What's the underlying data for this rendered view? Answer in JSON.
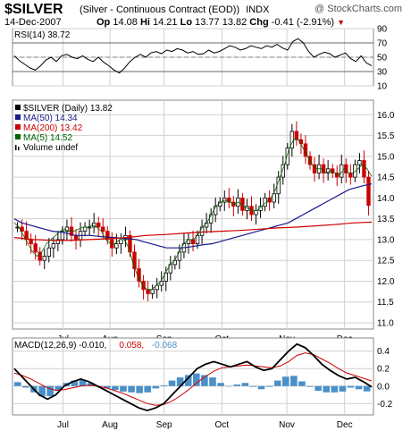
{
  "header": {
    "symbol": "$SILVER",
    "description": "(Silver - Continuous Contract (EOD))",
    "exchange": "INDX",
    "watermark": "@ StockCharts.com",
    "date": "14-Dec-2007",
    "open_label": "Op",
    "open": "14.08",
    "high_label": "Hi",
    "high": "14.21",
    "low_label": "Lo",
    "low": "13.77",
    "close": "13.82",
    "change_label": "Chg",
    "change": "-0.41 (-2.91%)",
    "arrow": "▼"
  },
  "colors": {
    "price_up": "#000000",
    "price_down": "#cc0000",
    "ma50": "#1a1a8c",
    "ma200": "#cc0000",
    "ma5": "#006600",
    "rsi_fill": "#339933",
    "macd_hist": "#4a90c8",
    "macd_line": "#000000",
    "signal_line": "#cc0000",
    "grid": "#d0d0d0"
  },
  "chart_data": [
    {
      "type": "line",
      "panel": "rsi",
      "legend": "RSI(14) 38.72",
      "y_ticks": [
        "90",
        "70",
        "50",
        "30",
        "10"
      ],
      "ylim": [
        10,
        90
      ],
      "reference_lines": [
        70,
        30
      ],
      "values": [
        52,
        45,
        40,
        35,
        32,
        38,
        46,
        50,
        44,
        52,
        54,
        50,
        48,
        52,
        47,
        44,
        50,
        43,
        38,
        32,
        28,
        35,
        44,
        50,
        54,
        50,
        56,
        58,
        55,
        60,
        58,
        62,
        60,
        56,
        58,
        54,
        55,
        60,
        56,
        58,
        62,
        66,
        64,
        60,
        62,
        66,
        64,
        62,
        66,
        64,
        68,
        63,
        60,
        72,
        76,
        70,
        58,
        50,
        54,
        57,
        55,
        50,
        53,
        56,
        48,
        44,
        52,
        42,
        38
      ]
    },
    {
      "type": "candlestick",
      "panel": "price",
      "legend": [
        {
          "text": "$SILVER (Daily) 13.82",
          "color": "#000000"
        },
        {
          "text": "MA(50) 14.34",
          "color": "#1a1a8c"
        },
        {
          "text": "MA(200) 13.42",
          "color": "#cc0000"
        },
        {
          "text": "MA(5) 14.52",
          "color": "#006600"
        },
        {
          "text": "Volume undef",
          "color": "#000000"
        }
      ],
      "x_labels": [
        "Jul",
        "Aug",
        "Sep",
        "Oct",
        "Nov",
        "Dec"
      ],
      "y_ticks": [
        "16.0",
        "15.5",
        "15.0",
        "14.5",
        "14.0",
        "13.5",
        "13.0",
        "12.5",
        "12.0",
        "11.5",
        "11.0"
      ],
      "ylim": [
        10.85,
        16.35
      ],
      "close": [
        13.3,
        13.2,
        13.0,
        12.9,
        12.7,
        12.5,
        12.6,
        12.8,
        12.9,
        13.0,
        13.2,
        13.3,
        13.1,
        13.0,
        13.2,
        13.3,
        13.3,
        13.4,
        13.3,
        13.2,
        13.0,
        12.8,
        12.9,
        13.0,
        13.1,
        12.7,
        12.3,
        12.0,
        11.8,
        11.7,
        11.8,
        11.9,
        12.0,
        12.2,
        12.4,
        12.5,
        12.7,
        12.9,
        13.0,
        12.9,
        13.1,
        13.3,
        13.4,
        13.6,
        13.8,
        13.9,
        14.0,
        13.9,
        13.8,
        14.0,
        13.7,
        13.8,
        13.6,
        13.7,
        13.8,
        14.0,
        13.9,
        14.1,
        14.5,
        14.8,
        15.2,
        15.6,
        15.4,
        15.3,
        15.0,
        14.8,
        14.6,
        14.8,
        14.6,
        14.7,
        14.6,
        14.5,
        14.8,
        14.6,
        14.5,
        14.8,
        14.9,
        14.5,
        13.82
      ],
      "series": [
        {
          "name": "MA(50)",
          "values": [
            13.5,
            13.4,
            13.35,
            13.3,
            13.25,
            13.2,
            13.18,
            13.15,
            13.1,
            13.1,
            13.1,
            13.08,
            13.06,
            13.05,
            13.04,
            13.02,
            13.0,
            12.95,
            12.9,
            12.85,
            12.8,
            12.8,
            12.8,
            12.82,
            12.85,
            12.88,
            12.9,
            12.95,
            13.0,
            13.05,
            13.1,
            13.15,
            13.2,
            13.25,
            13.3,
            13.35,
            13.4,
            13.5,
            13.6,
            13.7,
            13.8,
            13.9,
            14.0,
            14.1,
            14.2,
            14.25,
            14.3,
            14.34
          ]
        },
        {
          "name": "MA(200)",
          "values": [
            13.05,
            13.0,
            12.98,
            12.98,
            13.0,
            13.02,
            13.05,
            13.1,
            13.12,
            13.15,
            13.18,
            13.2,
            13.22,
            13.25,
            13.28,
            13.3,
            13.33,
            13.36,
            13.4,
            13.42
          ]
        },
        {
          "name": "MA(5)",
          "values": [
            13.4,
            13.3,
            13.1,
            12.9,
            12.7,
            12.6,
            12.7,
            12.9,
            13.0,
            13.1,
            13.2,
            13.25,
            13.2,
            13.2,
            13.25,
            13.3,
            13.3,
            13.35,
            13.3,
            13.2,
            13.0,
            12.9,
            12.9,
            13.0,
            13.0,
            12.8,
            12.4,
            12.1,
            11.9,
            11.8,
            11.8,
            11.9,
            12.0,
            12.2,
            12.4,
            12.5,
            12.7,
            12.9,
            13.0,
            13.0,
            13.1,
            13.3,
            13.4,
            13.6,
            13.8,
            13.9,
            13.95,
            13.9,
            13.85,
            13.9,
            13.8,
            13.75,
            13.7,
            13.7,
            13.8,
            13.9,
            14.0,
            14.2,
            14.5,
            14.8,
            15.2,
            15.4,
            15.4,
            15.2,
            15.0,
            14.8,
            14.7,
            14.7,
            14.6,
            14.65,
            14.6,
            14.55,
            14.7,
            14.6,
            14.6,
            14.7,
            14.8,
            14.7,
            14.52
          ]
        }
      ]
    },
    {
      "type": "line",
      "panel": "macd",
      "legend": [
        {
          "text": "MACD(12,26,9) -0.010,",
          "color": "#000000"
        },
        {
          "text": "0.058,",
          "color": "#cc0000"
        },
        {
          "text": "-0.068",
          "color": "#4a90c8"
        }
      ],
      "x_labels": [
        "Jul",
        "Aug",
        "Sep",
        "Oct",
        "Nov",
        "Dec"
      ],
      "y_ticks": [
        "0.4",
        "0.2",
        "0.0",
        "-0.2"
      ],
      "ylim": [
        -0.33,
        0.55
      ],
      "series": [
        {
          "name": "MACD",
          "values": [
            0.2,
            0.1,
            0.0,
            -0.1,
            -0.15,
            -0.1,
            0.0,
            0.05,
            0.08,
            0.05,
            0.0,
            -0.05,
            -0.1,
            -0.15,
            -0.2,
            -0.25,
            -0.28,
            -0.25,
            -0.2,
            -0.1,
            0.0,
            0.1,
            0.2,
            0.25,
            0.28,
            0.25,
            0.22,
            0.25,
            0.28,
            0.22,
            0.18,
            0.2,
            0.3,
            0.4,
            0.48,
            0.44,
            0.35,
            0.25,
            0.18,
            0.12,
            0.08,
            0.1,
            0.05,
            -0.01
          ]
        },
        {
          "name": "Signal",
          "values": [
            0.15,
            0.12,
            0.08,
            0.03,
            -0.02,
            -0.05,
            -0.04,
            -0.02,
            0.0,
            0.01,
            0.0,
            -0.02,
            -0.05,
            -0.08,
            -0.12,
            -0.16,
            -0.2,
            -0.22,
            -0.21,
            -0.17,
            -0.11,
            -0.04,
            0.04,
            0.11,
            0.17,
            0.21,
            0.22,
            0.23,
            0.24,
            0.23,
            0.22,
            0.21,
            0.23,
            0.28,
            0.35,
            0.38,
            0.36,
            0.31,
            0.26,
            0.2,
            0.15,
            0.12,
            0.09,
            0.058
          ]
        }
      ]
    }
  ]
}
